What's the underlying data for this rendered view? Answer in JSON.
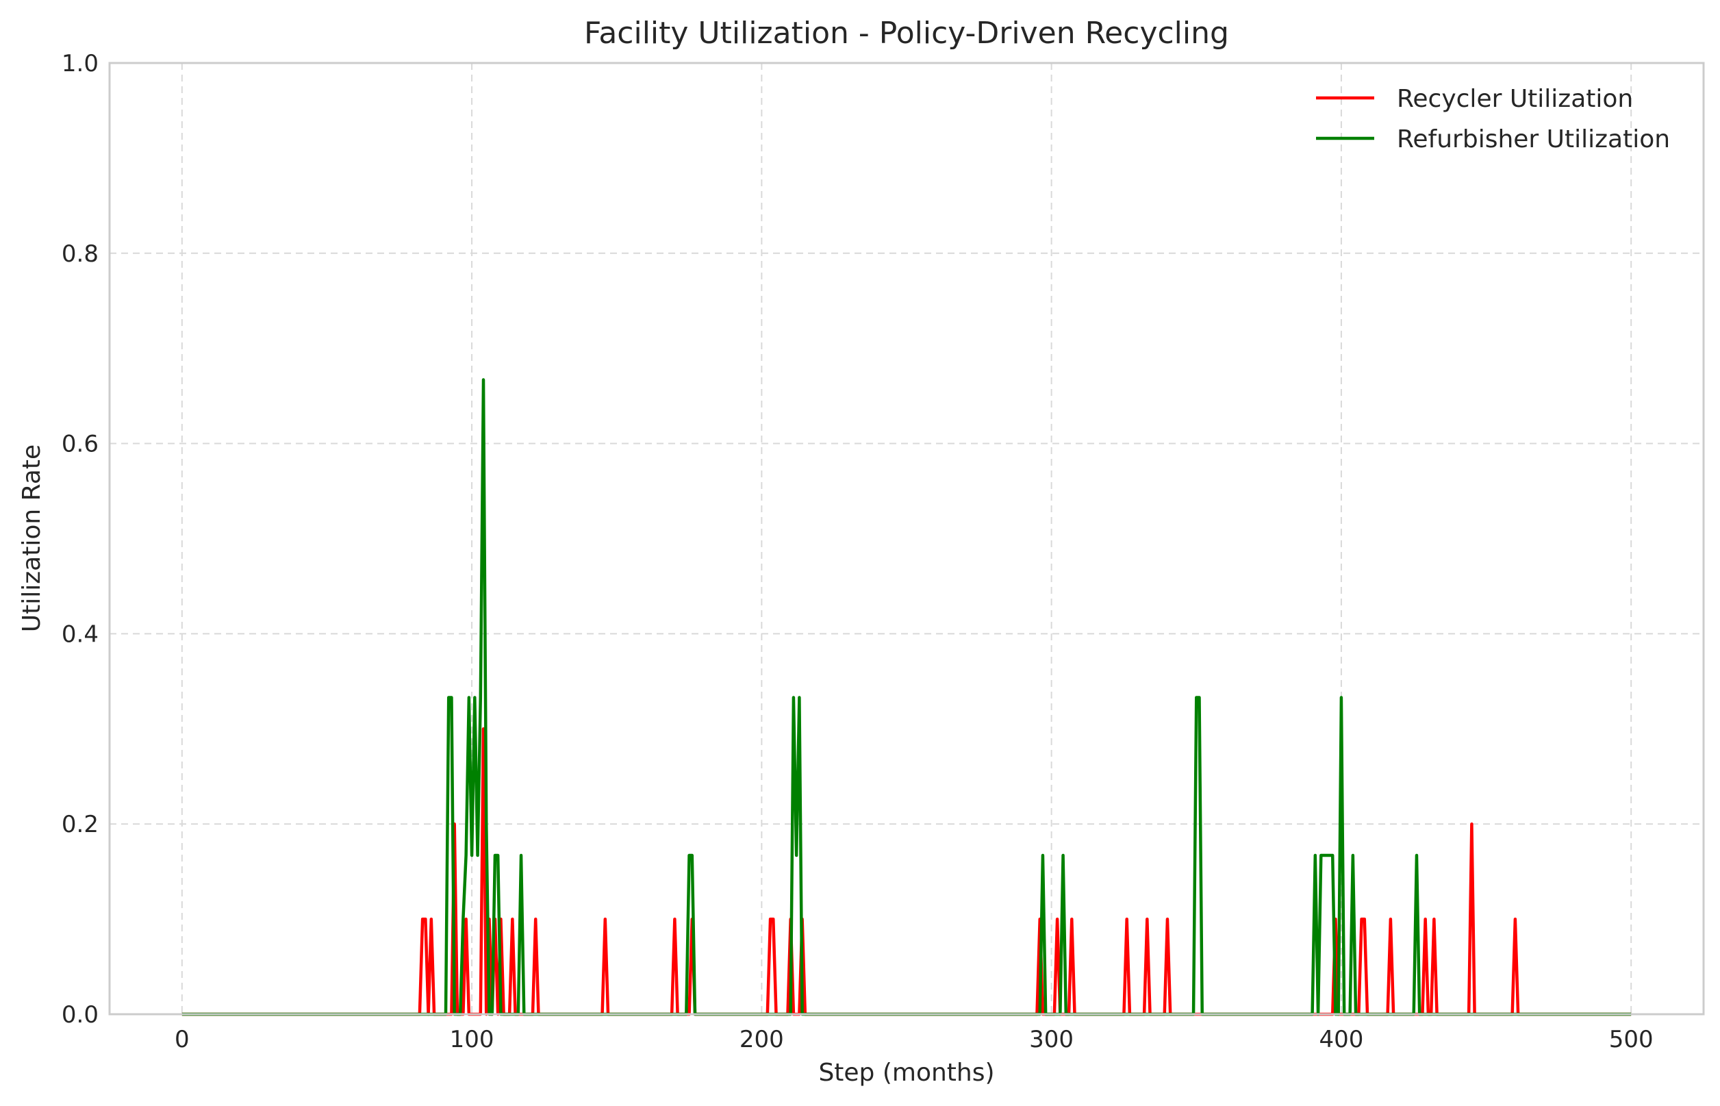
{
  "chart_data": {
    "type": "line",
    "title": "Facility Utilization - Policy-Driven Recycling",
    "xlabel": "Step (months)",
    "ylabel": "Utilization Rate",
    "xlim": [
      -25,
      525
    ],
    "ylim": [
      0,
      1.0
    ],
    "xticks": [
      0,
      100,
      200,
      300,
      400,
      500
    ],
    "xtick_labels": [
      "0",
      "100",
      "200",
      "300",
      "400",
      "500"
    ],
    "yticks": [
      0,
      0.2,
      0.4,
      0.6,
      0.8,
      1.0
    ],
    "ytick_labels": [
      "0.0",
      "0.2",
      "0.4",
      "0.6",
      "0.8",
      "1.0"
    ],
    "grid": true,
    "legend_position": "top-right",
    "x_range": [
      0,
      500
    ],
    "series": [
      {
        "name": "Recycler Utilization",
        "color": "#ff0000",
        "nonzero_points": [
          [
            83,
            0.1
          ],
          [
            84,
            0.1
          ],
          [
            86,
            0.1
          ],
          [
            94,
            0.2
          ],
          [
            98,
            0.1
          ],
          [
            104,
            0.3
          ],
          [
            106,
            0.1
          ],
          [
            108,
            0.1
          ],
          [
            110,
            0.1
          ],
          [
            114,
            0.1
          ],
          [
            122,
            0.1
          ],
          [
            146,
            0.1
          ],
          [
            170,
            0.1
          ],
          [
            176,
            0.1
          ],
          [
            203,
            0.1
          ],
          [
            204,
            0.1
          ],
          [
            210,
            0.1
          ],
          [
            214,
            0.1
          ],
          [
            296,
            0.1
          ],
          [
            302,
            0.1
          ],
          [
            307,
            0.1
          ],
          [
            326,
            0.1
          ],
          [
            333,
            0.1
          ],
          [
            340,
            0.1
          ],
          [
            398,
            0.1
          ],
          [
            407,
            0.1
          ],
          [
            408,
            0.1
          ],
          [
            417,
            0.1
          ],
          [
            429,
            0.1
          ],
          [
            432,
            0.1
          ],
          [
            445,
            0.2
          ],
          [
            460,
            0.1
          ]
        ]
      },
      {
        "name": "Refurbisher Utilization",
        "color": "#008000",
        "nonzero_points": [
          [
            92,
            0.333
          ],
          [
            93,
            0.333
          ],
          [
            97,
            0.1
          ],
          [
            98,
            0.167
          ],
          [
            99,
            0.333
          ],
          [
            100,
            0.167
          ],
          [
            101,
            0.333
          ],
          [
            102,
            0.167
          ],
          [
            103,
            0.333
          ],
          [
            104,
            0.667
          ],
          [
            105,
            0.2
          ],
          [
            108,
            0.167
          ],
          [
            109,
            0.167
          ],
          [
            117,
            0.167
          ],
          [
            175,
            0.167
          ],
          [
            176,
            0.167
          ],
          [
            211,
            0.333
          ],
          [
            212,
            0.167
          ],
          [
            213,
            0.333
          ],
          [
            297,
            0.167
          ],
          [
            304,
            0.167
          ],
          [
            350,
            0.333
          ],
          [
            351,
            0.333
          ],
          [
            391,
            0.167
          ],
          [
            393,
            0.167
          ],
          [
            394,
            0.167
          ],
          [
            395,
            0.167
          ],
          [
            396,
            0.167
          ],
          [
            397,
            0.167
          ],
          [
            400,
            0.333
          ],
          [
            404,
            0.167
          ],
          [
            426,
            0.167
          ]
        ]
      }
    ]
  }
}
